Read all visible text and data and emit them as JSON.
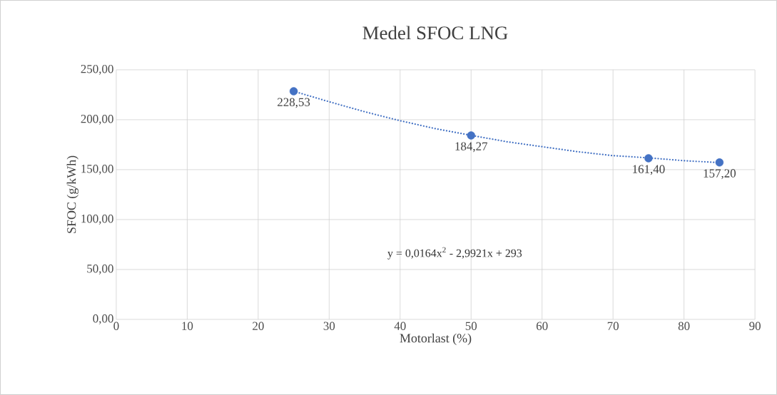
{
  "chart_data": {
    "type": "scatter",
    "title": "Medel SFOC LNG",
    "xlabel": "Motorlast (%)",
    "ylabel": "SFOC (g/kWh)",
    "xlim": [
      0,
      90
    ],
    "xticks": [
      0,
      10,
      20,
      30,
      40,
      50,
      60,
      70,
      80,
      90
    ],
    "ylim": [
      0,
      250
    ],
    "yticks": [
      {
        "value": 0,
        "label": "0,00"
      },
      {
        "value": 50,
        "label": "50,00"
      },
      {
        "value": 100,
        "label": "100,00"
      },
      {
        "value": 150,
        "label": "150,00"
      },
      {
        "value": 200,
        "label": "200,00"
      },
      {
        "value": 250,
        "label": "250,00"
      }
    ],
    "grid": true,
    "series": [
      {
        "color": "#4472c4",
        "marker": "circle",
        "x": [
          25,
          50,
          75,
          85
        ],
        "values": [
          228.53,
          184.27,
          161.4,
          157.2
        ],
        "value_labels": [
          "228,53",
          "184,27",
          "161,40",
          "157,20"
        ]
      },
      {
        "type": "line",
        "color": "#4472c4",
        "line_style": "dotted",
        "marker": "none",
        "x": [
          25,
          30,
          35,
          40,
          45,
          50,
          55,
          60,
          65,
          70,
          75,
          80,
          85
        ],
        "values": [
          228.5,
          218,
          208,
          199,
          191,
          184.4,
          178,
          173,
          168,
          164,
          161.8,
          159,
          157
        ]
      }
    ],
    "annotations": [
      "y = 0,0164x$^{2}$ - 2,9921x + 293"
    ]
  }
}
